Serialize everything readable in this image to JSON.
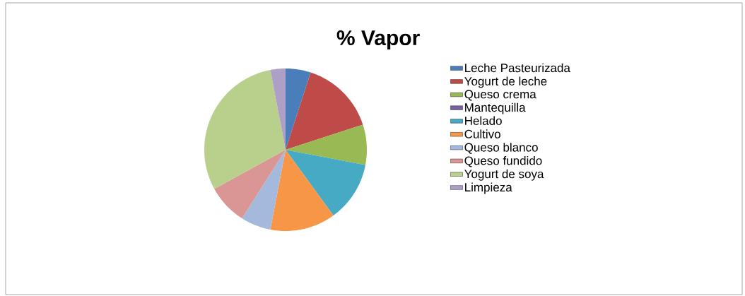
{
  "chart_data": {
    "type": "pie",
    "title": "% Vapor",
    "categories": [
      "Leche Pasteurizada",
      "Yogurt de leche",
      "Queso crema",
      "Mantequilla",
      "Helado",
      "Cultivo",
      "Queso blanco",
      "Queso fundido",
      "Yogurt de soya",
      "Limpieza"
    ],
    "values": [
      5,
      15,
      8,
      0,
      12,
      13,
      6,
      8,
      30,
      3
    ],
    "colors": [
      "#4a7ebb",
      "#be4b48",
      "#98b954",
      "#7d60a0",
      "#46aac5",
      "#f79646",
      "#a5b9dc",
      "#d99694",
      "#b8d08c",
      "#ad9fc6"
    ],
    "legend": "right"
  }
}
